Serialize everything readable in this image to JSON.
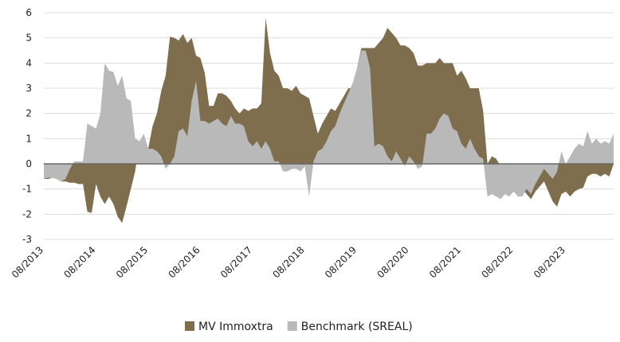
{
  "chart_data": {
    "type": "area",
    "categories": [
      "08/2013",
      null,
      null,
      null,
      null,
      null,
      null,
      null,
      null,
      null,
      null,
      null,
      "08/2014",
      null,
      null,
      null,
      null,
      null,
      null,
      null,
      null,
      null,
      null,
      null,
      "08/2015",
      null,
      null,
      null,
      null,
      null,
      null,
      null,
      null,
      null,
      null,
      null,
      "08/2016",
      null,
      null,
      null,
      null,
      null,
      null,
      null,
      null,
      null,
      null,
      null,
      "08/2017",
      null,
      null,
      null,
      null,
      null,
      null,
      null,
      null,
      null,
      null,
      null,
      "08/2018",
      null,
      null,
      null,
      null,
      null,
      null,
      null,
      null,
      null,
      null,
      null,
      "08/2019",
      null,
      null,
      null,
      null,
      null,
      null,
      null,
      null,
      null,
      null,
      null,
      "08/2020",
      null,
      null,
      null,
      null,
      null,
      null,
      null,
      null,
      null,
      null,
      null,
      "08/2021",
      null,
      null,
      null,
      null,
      null,
      null,
      null,
      null,
      null,
      null,
      null,
      "08/2022",
      null,
      null,
      null,
      null,
      null,
      null,
      null,
      null,
      null,
      null,
      null,
      "08/2023",
      null,
      null,
      null,
      null,
      null,
      null,
      null,
      null,
      null,
      null,
      null
    ],
    "series": [
      {
        "name": "MV Immoxtra",
        "color": "#7f6e4d",
        "values": [
          -0.6,
          -0.6,
          -0.55,
          -0.6,
          -0.7,
          -0.7,
          -0.75,
          -0.75,
          -0.8,
          -0.8,
          -1.9,
          -1.95,
          -0.8,
          -1.3,
          -1.6,
          -1.3,
          -1.6,
          -2.1,
          -2.35,
          -1.7,
          -1.0,
          -0.3,
          0.9,
          1.0,
          0.6,
          1.5,
          2.0,
          2.9,
          3.5,
          5.05,
          5.0,
          4.9,
          5.15,
          4.8,
          5.0,
          4.3,
          4.2,
          3.6,
          2.3,
          2.3,
          2.8,
          2.8,
          2.7,
          2.5,
          2.2,
          2.0,
          2.2,
          2.1,
          2.2,
          2.2,
          2.4,
          5.8,
          4.4,
          3.7,
          3.5,
          3.0,
          3.0,
          2.9,
          3.1,
          2.8,
          2.7,
          2.6,
          1.9,
          1.2,
          1.6,
          1.9,
          2.2,
          2.1,
          2.4,
          2.7,
          3.0,
          3.0,
          3.8,
          4.6,
          4.6,
          4.6,
          4.6,
          4.8,
          5.0,
          5.4,
          5.2,
          5.0,
          4.7,
          4.7,
          4.6,
          4.4,
          3.9,
          3.9,
          4.0,
          4.0,
          4.0,
          4.2,
          4.0,
          4.0,
          4.0,
          3.5,
          3.7,
          3.4,
          3.0,
          3.0,
          3.0,
          2.1,
          0.0,
          0.3,
          0.2,
          -0.1,
          -0.2,
          -0.3,
          -0.5,
          -0.8,
          -1.0,
          -1.2,
          -1.4,
          -1.1,
          -0.9,
          -0.7,
          -1.1,
          -1.5,
          -1.7,
          -1.2,
          -1.1,
          -1.3,
          -1.1,
          -1.0,
          -0.95,
          -0.5,
          -0.4,
          -0.4,
          -0.5,
          -0.4,
          -0.5,
          0.0
        ]
      },
      {
        "name": "Benchmark (SREAL)",
        "color": "#b9b9b9",
        "values": [
          -0.6,
          -0.55,
          -0.55,
          -0.6,
          -0.7,
          -0.6,
          -0.2,
          0.1,
          0.1,
          0.1,
          1.6,
          1.5,
          1.4,
          2.0,
          4.0,
          3.7,
          3.65,
          3.1,
          3.5,
          2.6,
          2.5,
          1.0,
          0.9,
          1.2,
          0.6,
          0.6,
          0.5,
          0.3,
          -0.2,
          0.0,
          0.3,
          1.3,
          1.4,
          1.1,
          2.5,
          3.3,
          1.7,
          1.7,
          1.6,
          1.7,
          1.8,
          1.6,
          1.5,
          1.9,
          1.6,
          1.6,
          1.5,
          0.9,
          0.7,
          0.9,
          0.6,
          0.9,
          0.6,
          0.1,
          0.1,
          -0.3,
          -0.3,
          -0.2,
          -0.2,
          -0.3,
          -0.1,
          -1.3,
          0.1,
          0.5,
          0.6,
          0.9,
          1.3,
          1.5,
          2.0,
          2.4,
          2.8,
          3.2,
          3.8,
          4.5,
          4.5,
          3.8,
          0.7,
          0.8,
          0.7,
          0.3,
          0.1,
          0.5,
          0.2,
          -0.1,
          0.3,
          0.1,
          -0.2,
          -0.1,
          1.2,
          1.2,
          1.4,
          1.8,
          2.0,
          1.9,
          1.4,
          1.3,
          0.8,
          0.6,
          1.0,
          0.6,
          0.3,
          0.2,
          -1.3,
          -1.2,
          -1.3,
          -1.4,
          -1.2,
          -1.3,
          -1.1,
          -1.3,
          -1.3,
          -1.0,
          -1.2,
          -0.8,
          -0.5,
          -0.2,
          -0.4,
          -0.6,
          -0.3,
          0.5,
          0.0,
          0.3,
          0.6,
          0.8,
          0.7,
          1.3,
          0.8,
          1.0,
          0.8,
          0.9,
          0.8,
          1.2
        ]
      }
    ],
    "ylim": [
      -3,
      6
    ],
    "yticks": [
      -3,
      -2,
      -1,
      0,
      1,
      2,
      3,
      4,
      5,
      6
    ],
    "grid": true,
    "legend": "bottom"
  }
}
